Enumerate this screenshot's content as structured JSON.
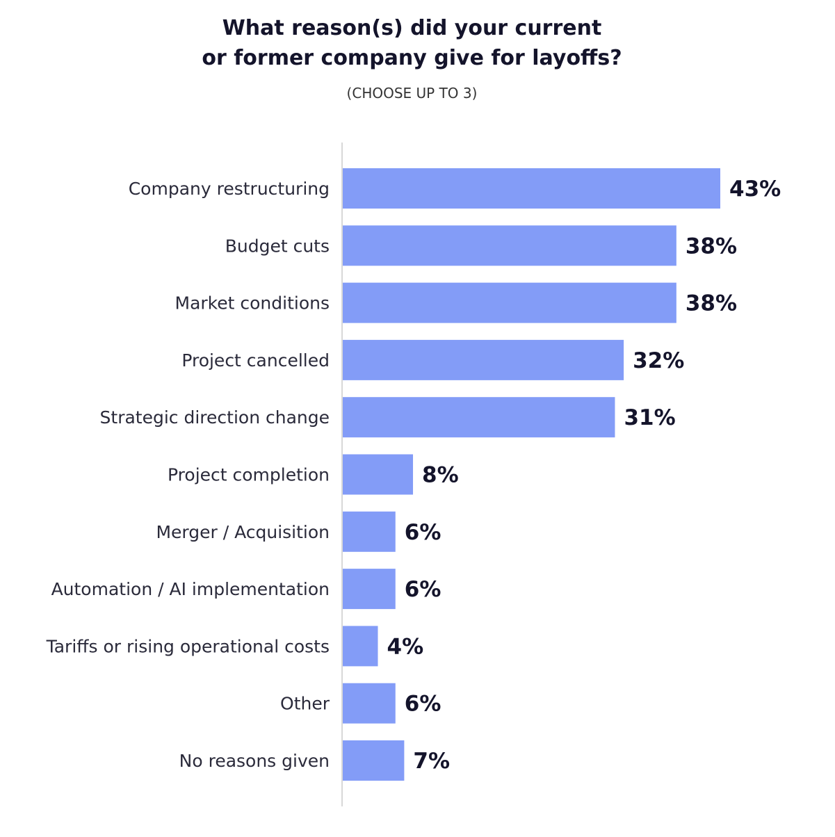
{
  "chart_data": {
    "type": "bar",
    "orientation": "horizontal",
    "title_lines": [
      "What reason(s) did your current",
      "or former company give for layoffs?"
    ],
    "subtitle": "(CHOOSE UP TO 3)",
    "categories": [
      "Company restructuring",
      "Budget cuts",
      "Market conditions",
      "Project cancelled",
      "Strategic direction change",
      "Project completion",
      "Merger / Acquisition",
      "Automation / AI implementation",
      "Tariffs or rising operational costs",
      "Other",
      "No reasons given"
    ],
    "values": [
      43,
      38,
      38,
      32,
      31,
      8,
      6,
      6,
      4,
      6,
      7
    ],
    "value_labels": [
      "43%",
      "38%",
      "38%",
      "32%",
      "31%",
      "8%",
      "6%",
      "6%",
      "4%",
      "6%",
      "7%"
    ],
    "unit": "%",
    "xlim": [
      0,
      43
    ],
    "grid": false,
    "colors": {
      "bar": "#839cf7",
      "axis": "#cccccc",
      "value_text": "#14142b"
    }
  }
}
